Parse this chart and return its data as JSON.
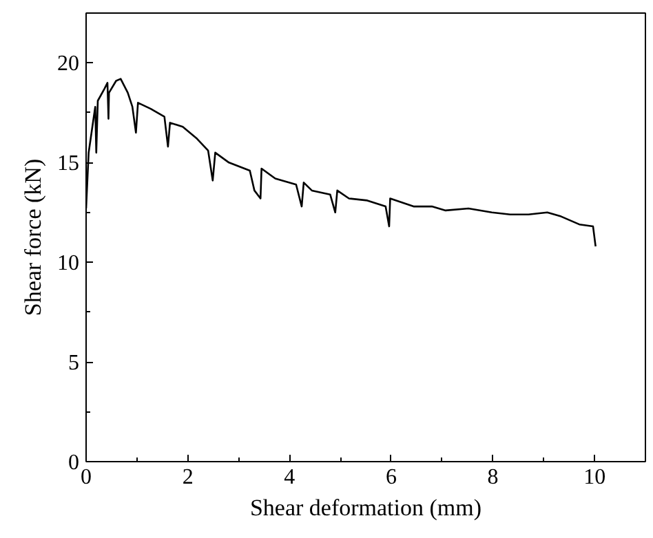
{
  "chart_data": {
    "type": "line",
    "xlabel": "Shear deformation (mm)",
    "ylabel": "Shear force (kN)",
    "xlim": [
      0,
      11
    ],
    "ylim": [
      0,
      22.5
    ],
    "xticks": [
      0,
      2,
      4,
      6,
      8,
      10
    ],
    "yticks": [
      0,
      5,
      10,
      15,
      20
    ],
    "grid": false,
    "marker": "none",
    "line_style": "solid",
    "series": [
      {
        "color": "#000000",
        "x": [
          0,
          0.05,
          0.09,
          0.14,
          0.18,
          0.2,
          0.23,
          0.36,
          0.42,
          0.44,
          0.45,
          0.59,
          0.68,
          0.82,
          0.91,
          0.98,
          1.02,
          1.27,
          1.54,
          1.61,
          1.65,
          1.9,
          2.18,
          2.4,
          2.49,
          2.54,
          2.81,
          3.22,
          3.31,
          3.43,
          3.45,
          3.72,
          4.13,
          4.24,
          4.28,
          4.44,
          4.8,
          4.9,
          4.94,
          5.17,
          5.53,
          5.89,
          5.96,
          5.98,
          6.44,
          6.8,
          7.07,
          7.52,
          7.98,
          8.34,
          8.7,
          9.07,
          9.34,
          9.7,
          9.97,
          10.02
        ],
        "values": [
          12.7,
          15.5,
          16.2,
          17.1,
          17.8,
          15.5,
          18.1,
          18.7,
          19.0,
          17.2,
          18.5,
          19.1,
          19.2,
          18.5,
          17.8,
          16.5,
          18.0,
          17.7,
          17.3,
          15.8,
          17.0,
          16.8,
          16.2,
          15.6,
          14.1,
          15.5,
          15.0,
          14.6,
          13.6,
          13.2,
          14.7,
          14.2,
          13.9,
          12.8,
          14.0,
          13.6,
          13.4,
          12.5,
          13.6,
          13.2,
          13.1,
          12.8,
          11.8,
          13.2,
          12.8,
          12.8,
          12.6,
          12.7,
          12.5,
          12.4,
          12.4,
          12.5,
          12.3,
          11.9,
          11.8,
          10.8
        ]
      }
    ]
  }
}
